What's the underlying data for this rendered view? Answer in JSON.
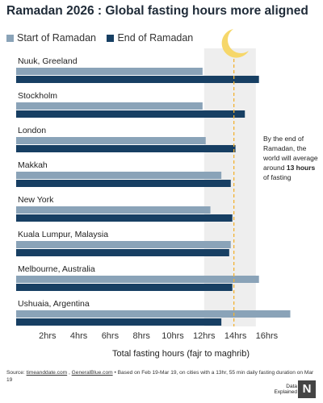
{
  "title": "Ramadan 2026 : Global fasting hours more aligned",
  "legend": {
    "start": "Start of Ramadan",
    "end": "End of Ramadan"
  },
  "colors": {
    "start": "#8aa3b8",
    "end": "#173f63",
    "shade": "#eeeeee",
    "dashed": "#f2b233",
    "moon": "#f6d76a"
  },
  "annotation": {
    "text_before": "By the end of Ramadan, the world will average around",
    "bold": "13 hours",
    "text_after": "of fasting"
  },
  "xlabel": "Total fasting hours (fajr to maghrib)",
  "source": {
    "prefix": "Source: ",
    "link1": "timeanddate.com",
    "sep": " , ",
    "link2": "GeneralBlue.com",
    "rest": " • Based on Feb 19-Mar 19, on cities with a 13hr, 55 min daily fasting duration on Mar 19"
  },
  "brand": {
    "line1": "Data",
    "line2": "Explained",
    "logo": "N"
  },
  "moon_icon": "crescent-moon-icon",
  "chart_data": {
    "type": "bar",
    "orientation": "horizontal",
    "title": "Ramadan 2026 : Global fasting hours more aligned",
    "xlabel": "Total fasting hours (fajr to maghrib)",
    "categories": [
      "Nuuk, Greeland",
      "Stockholm",
      "London",
      "Makkah",
      "New York",
      "Kuala Lumpur, Malaysia",
      "Melbourne, Australia",
      "Ushuaia, Argentina"
    ],
    "series": [
      {
        "name": "Start of Ramadan",
        "values": [
          11.9,
          11.9,
          12.1,
          13.1,
          12.4,
          13.7,
          15.5,
          17.5
        ]
      },
      {
        "name": "End of Ramadan",
        "values": [
          15.5,
          14.6,
          14.0,
          13.7,
          13.8,
          13.6,
          13.8,
          13.1
        ]
      }
    ],
    "xticks": [
      2,
      4,
      6,
      8,
      10,
      12,
      14,
      16
    ],
    "xticklabels": [
      "2hrs",
      "4hrs",
      "6hrs",
      "8hrs",
      "10hrs",
      "12hrs",
      "14hrs",
      "16hrs"
    ],
    "xlim": [
      0,
      18
    ],
    "shaded_range": [
      12,
      15.3
    ],
    "reference_line": 13.9,
    "grid": false,
    "legend_position": "top-left"
  }
}
